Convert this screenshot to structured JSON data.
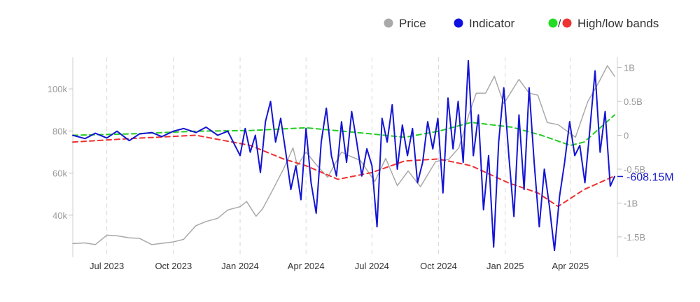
{
  "chart_data": {
    "type": "line",
    "legend": {
      "placement": "top-right",
      "items": [
        {
          "label": "Price",
          "dots": [
            "#a9a9a9"
          ]
        },
        {
          "label": "Indicator",
          "dots": [
            "#1010e0"
          ]
        },
        {
          "label": "High/low bands",
          "dots": [
            "#22dd22",
            "#ee3333"
          ],
          "separator": "/"
        }
      ]
    },
    "x_axis": {
      "type": "date",
      "range": [
        "2023-05-15",
        "2025-06-01"
      ],
      "ticks": [
        {
          "date": "2023-07-01",
          "label": "Jul 2023"
        },
        {
          "date": "2023-10-01",
          "label": "Oct 2023"
        },
        {
          "date": "2024-01-01",
          "label": "Jan 2024"
        },
        {
          "date": "2024-04-01",
          "label": "Apr 2024"
        },
        {
          "date": "2024-07-01",
          "label": "Jul 2024"
        },
        {
          "date": "2024-10-01",
          "label": "Oct 2024"
        },
        {
          "date": "2025-01-01",
          "label": "Jan 2025"
        },
        {
          "date": "2025-04-01",
          "label": "Apr 2025"
        }
      ],
      "grid": "dashed vertical"
    },
    "y_left": {
      "range": [
        20000,
        115000
      ],
      "ticks": [
        {
          "value": 40000,
          "label": "40k"
        },
        {
          "value": 60000,
          "label": "60k"
        },
        {
          "value": 80000,
          "label": "80k"
        },
        {
          "value": 100000,
          "label": "100k"
        }
      ]
    },
    "y_right": {
      "range": [
        -1800000000,
        1150000000
      ],
      "ticks": [
        {
          "value": 1000000000,
          "label": "1B"
        },
        {
          "value": 500000000,
          "label": "0.5B"
        },
        {
          "value": 0,
          "label": "0"
        },
        {
          "value": -500000000,
          "label": "-0.5B"
        },
        {
          "value": -1000000000,
          "label": "-1B"
        },
        {
          "value": -1500000000,
          "label": "-1.5B"
        }
      ]
    },
    "last_value_label": {
      "text": "-608.15M",
      "value": -608150000,
      "color": "#1a1acc"
    },
    "series": [
      {
        "name": "Price",
        "axis": "left",
        "color": "#a9a9a9",
        "points": [
          [
            "2023-05-15",
            26500
          ],
          [
            "2023-06-01",
            26800
          ],
          [
            "2023-06-15",
            26000
          ],
          [
            "2023-07-01",
            30500
          ],
          [
            "2023-07-15",
            30200
          ],
          [
            "2023-08-01",
            29200
          ],
          [
            "2023-08-15",
            29000
          ],
          [
            "2023-09-01",
            26000
          ],
          [
            "2023-09-15",
            26600
          ],
          [
            "2023-10-01",
            27300
          ],
          [
            "2023-10-15",
            28500
          ],
          [
            "2023-11-01",
            35000
          ],
          [
            "2023-11-15",
            37000
          ],
          [
            "2023-12-01",
            38500
          ],
          [
            "2023-12-15",
            42500
          ],
          [
            "2024-01-01",
            44000
          ],
          [
            "2024-01-10",
            46500
          ],
          [
            "2024-01-23",
            39500
          ],
          [
            "2024-02-01",
            43000
          ],
          [
            "2024-02-15",
            52000
          ],
          [
            "2024-03-01",
            62000
          ],
          [
            "2024-03-14",
            72000
          ],
          [
            "2024-03-20",
            63500
          ],
          [
            "2024-04-01",
            70000
          ],
          [
            "2024-04-15",
            64000
          ],
          [
            "2024-05-01",
            58000
          ],
          [
            "2024-05-20",
            70000
          ],
          [
            "2024-06-01",
            68000
          ],
          [
            "2024-06-15",
            66000
          ],
          [
            "2024-07-05",
            56000
          ],
          [
            "2024-07-20",
            67000
          ],
          [
            "2024-08-05",
            54000
          ],
          [
            "2024-08-20",
            61000
          ],
          [
            "2024-09-06",
            53500
          ],
          [
            "2024-09-27",
            65500
          ],
          [
            "2024-10-15",
            66500
          ],
          [
            "2024-10-29",
            72000
          ],
          [
            "2024-11-12",
            88000
          ],
          [
            "2024-11-22",
            98000
          ],
          [
            "2024-12-05",
            98000
          ],
          [
            "2024-12-17",
            106000
          ],
          [
            "2024-12-30",
            93000
          ],
          [
            "2025-01-20",
            104500
          ],
          [
            "2025-02-03",
            98000
          ],
          [
            "2025-02-15",
            97000
          ],
          [
            "2025-02-28",
            84000
          ],
          [
            "2025-03-15",
            83000
          ],
          [
            "2025-04-08",
            77000
          ],
          [
            "2025-04-25",
            94000
          ],
          [
            "2025-05-10",
            103000
          ],
          [
            "2025-05-22",
            111000
          ],
          [
            "2025-06-01",
            106000
          ]
        ]
      },
      {
        "name": "Indicator",
        "axis": "right",
        "color": "#1414d4",
        "points": [
          [
            "2023-05-15",
            0
          ],
          [
            "2023-06-01",
            -50000000
          ],
          [
            "2023-06-15",
            30000000
          ],
          [
            "2023-07-01",
            -40000000
          ],
          [
            "2023-07-15",
            60000000
          ],
          [
            "2023-08-01",
            -80000000
          ],
          [
            "2023-08-15",
            20000000
          ],
          [
            "2023-09-01",
            40000000
          ],
          [
            "2023-09-15",
            -20000000
          ],
          [
            "2023-10-01",
            60000000
          ],
          [
            "2023-10-15",
            100000000
          ],
          [
            "2023-11-01",
            40000000
          ],
          [
            "2023-11-15",
            120000000
          ],
          [
            "2023-12-01",
            0
          ],
          [
            "2023-12-15",
            60000000
          ],
          [
            "2024-01-01",
            -300000000
          ],
          [
            "2024-01-08",
            100000000
          ],
          [
            "2024-01-15",
            -250000000
          ],
          [
            "2024-01-22",
            0
          ],
          [
            "2024-01-29",
            -550000000
          ],
          [
            "2024-02-05",
            200000000
          ],
          [
            "2024-02-12",
            500000000
          ],
          [
            "2024-02-19",
            -100000000
          ],
          [
            "2024-02-26",
            250000000
          ],
          [
            "2024-03-04",
            -250000000
          ],
          [
            "2024-03-11",
            -800000000
          ],
          [
            "2024-03-18",
            -450000000
          ],
          [
            "2024-03-25",
            -950000000
          ],
          [
            "2024-04-01",
            100000000
          ],
          [
            "2024-04-08",
            -700000000
          ],
          [
            "2024-04-15",
            -1150000000
          ],
          [
            "2024-04-22",
            -100000000
          ],
          [
            "2024-04-29",
            400000000
          ],
          [
            "2024-05-06",
            -300000000
          ],
          [
            "2024-05-13",
            -600000000
          ],
          [
            "2024-05-20",
            200000000
          ],
          [
            "2024-05-27",
            -400000000
          ],
          [
            "2024-06-03",
            350000000
          ],
          [
            "2024-06-10",
            -100000000
          ],
          [
            "2024-06-17",
            -600000000
          ],
          [
            "2024-06-24",
            -200000000
          ],
          [
            "2024-07-01",
            -450000000
          ],
          [
            "2024-07-08",
            -1350000000
          ],
          [
            "2024-07-15",
            250000000
          ],
          [
            "2024-07-22",
            -100000000
          ],
          [
            "2024-07-29",
            450000000
          ],
          [
            "2024-08-05",
            -500000000
          ],
          [
            "2024-08-12",
            150000000
          ],
          [
            "2024-08-19",
            -300000000
          ],
          [
            "2024-08-26",
            100000000
          ],
          [
            "2024-09-02",
            -700000000
          ],
          [
            "2024-09-09",
            -400000000
          ],
          [
            "2024-09-16",
            200000000
          ],
          [
            "2024-09-23",
            -200000000
          ],
          [
            "2024-09-30",
            250000000
          ],
          [
            "2024-10-07",
            -850000000
          ],
          [
            "2024-10-14",
            550000000
          ],
          [
            "2024-10-21",
            -200000000
          ],
          [
            "2024-10-28",
            500000000
          ],
          [
            "2024-11-04",
            -400000000
          ],
          [
            "2024-11-11",
            1100000000
          ],
          [
            "2024-11-18",
            -300000000
          ],
          [
            "2024-11-25",
            300000000
          ],
          [
            "2024-12-02",
            -1100000000
          ],
          [
            "2024-12-09",
            -300000000
          ],
          [
            "2024-12-16",
            -1650000000
          ],
          [
            "2024-12-23",
            -100000000
          ],
          [
            "2024-12-30",
            700000000
          ],
          [
            "2025-01-06",
            -300000000
          ],
          [
            "2025-01-13",
            -1200000000
          ],
          [
            "2025-01-20",
            300000000
          ],
          [
            "2025-01-27",
            -800000000
          ],
          [
            "2025-02-03",
            700000000
          ],
          [
            "2025-02-10",
            -400000000
          ],
          [
            "2025-02-17",
            -1350000000
          ],
          [
            "2025-02-24",
            -500000000
          ],
          [
            "2025-03-03",
            -1050000000
          ],
          [
            "2025-03-10",
            -1700000000
          ],
          [
            "2025-03-17",
            -900000000
          ],
          [
            "2025-03-24",
            -400000000
          ],
          [
            "2025-03-31",
            200000000
          ],
          [
            "2025-04-07",
            -300000000
          ],
          [
            "2025-04-14",
            -150000000
          ],
          [
            "2025-04-21",
            -700000000
          ],
          [
            "2025-04-28",
            100000000
          ],
          [
            "2025-05-05",
            950000000
          ],
          [
            "2025-05-12",
            -250000000
          ],
          [
            "2025-05-19",
            350000000
          ],
          [
            "2025-05-26",
            -750000000
          ],
          [
            "2025-06-01",
            -608150000
          ]
        ]
      },
      {
        "name": "High band",
        "axis": "right",
        "color": "#22cc22",
        "dash": true,
        "points": [
          [
            "2023-05-15",
            0
          ],
          [
            "2023-08-01",
            20000000
          ],
          [
            "2023-11-01",
            60000000
          ],
          [
            "2024-01-15",
            70000000
          ],
          [
            "2024-04-01",
            110000000
          ],
          [
            "2024-07-01",
            20000000
          ],
          [
            "2024-08-15",
            -30000000
          ],
          [
            "2024-10-01",
            60000000
          ],
          [
            "2024-11-15",
            190000000
          ],
          [
            "2025-01-10",
            120000000
          ],
          [
            "2025-02-20",
            0
          ],
          [
            "2025-04-01",
            -150000000
          ],
          [
            "2025-04-20",
            -100000000
          ],
          [
            "2025-06-01",
            300000000
          ]
        ]
      },
      {
        "name": "Low band",
        "axis": "right",
        "color": "#ee3030",
        "dash": true,
        "points": [
          [
            "2023-05-15",
            -100000000
          ],
          [
            "2023-08-01",
            -50000000
          ],
          [
            "2023-11-01",
            0
          ],
          [
            "2024-01-15",
            -150000000
          ],
          [
            "2024-03-01",
            -350000000
          ],
          [
            "2024-04-01",
            -450000000
          ],
          [
            "2024-05-15",
            -650000000
          ],
          [
            "2024-07-01",
            -550000000
          ],
          [
            "2024-08-15",
            -380000000
          ],
          [
            "2024-10-01",
            -350000000
          ],
          [
            "2024-11-15",
            -450000000
          ],
          [
            "2025-01-05",
            -700000000
          ],
          [
            "2025-02-15",
            -850000000
          ],
          [
            "2025-03-15",
            -1050000000
          ],
          [
            "2025-04-20",
            -800000000
          ],
          [
            "2025-06-01",
            -600000000
          ]
        ]
      }
    ]
  }
}
